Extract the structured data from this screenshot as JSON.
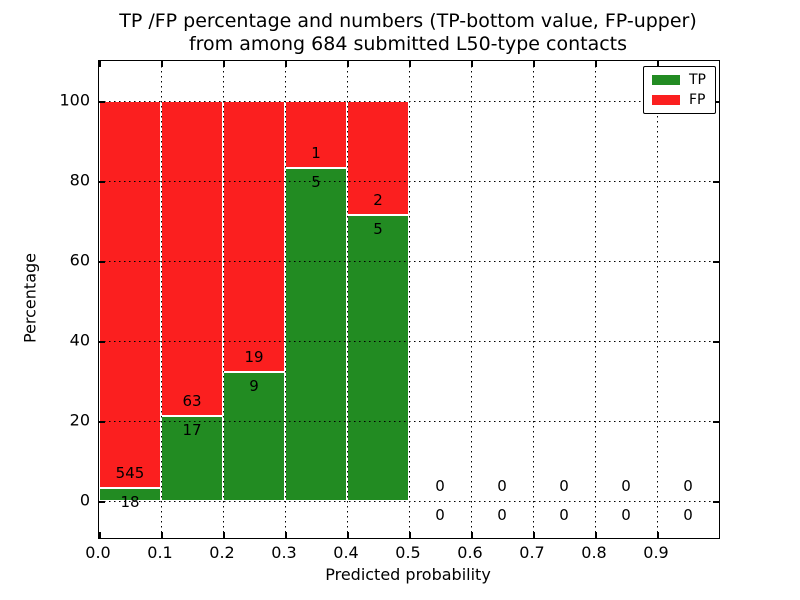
{
  "title": {
    "line1": "TP /FP percentage and numbers (TP-bottom value, FP-upper)",
    "line2": "from among 684 submitted L50-type contacts"
  },
  "axes": {
    "xlabel": "Predicted probability",
    "ylabel": "Percentage",
    "x_tick_labels": [
      "0.0",
      "0.1",
      "0.2",
      "0.3",
      "0.4",
      "0.5",
      "0.6",
      "0.7",
      "0.8",
      "0.9"
    ],
    "y_tick_labels": [
      "0",
      "20",
      "40",
      "60",
      "80",
      "100"
    ],
    "xlim": [
      0.0,
      1.0
    ],
    "ylim": [
      -9.25,
      110
    ],
    "grid": "dotted"
  },
  "legend": {
    "position": "upper right",
    "items": [
      {
        "label": "TP",
        "color": "#228B22"
      },
      {
        "label": "FP",
        "color": "#FB1F1F"
      }
    ]
  },
  "colors": {
    "tp": "#228B22",
    "fp": "#FB1F1F",
    "grid": "#000000",
    "background": "#ffffff"
  },
  "chart_data": {
    "type": "bar",
    "stacked": true,
    "total_contacts": 684,
    "x_bin_width": 0.1,
    "bins": [
      {
        "range": [
          0.0,
          0.1
        ],
        "tp_count": 18,
        "fp_count": 545,
        "tp_pct": 3.2,
        "fp_pct": 96.8
      },
      {
        "range": [
          0.1,
          0.2
        ],
        "tp_count": 17,
        "fp_count": 63,
        "tp_pct": 21.25,
        "fp_pct": 78.75
      },
      {
        "range": [
          0.2,
          0.3
        ],
        "tp_count": 9,
        "fp_count": 19,
        "tp_pct": 32.14,
        "fp_pct": 67.86
      },
      {
        "range": [
          0.3,
          0.4
        ],
        "tp_count": 5,
        "fp_count": 1,
        "tp_pct": 83.33,
        "fp_pct": 16.67
      },
      {
        "range": [
          0.4,
          0.5
        ],
        "tp_count": 5,
        "fp_count": 2,
        "tp_pct": 71.43,
        "fp_pct": 28.57
      },
      {
        "range": [
          0.5,
          0.6
        ],
        "tp_count": 0,
        "fp_count": 0,
        "tp_pct": 0,
        "fp_pct": 0
      },
      {
        "range": [
          0.6,
          0.7
        ],
        "tp_count": 0,
        "fp_count": 0,
        "tp_pct": 0,
        "fp_pct": 0
      },
      {
        "range": [
          0.7,
          0.8
        ],
        "tp_count": 0,
        "fp_count": 0,
        "tp_pct": 0,
        "fp_pct": 0
      },
      {
        "range": [
          0.8,
          0.9
        ],
        "tp_count": 0,
        "fp_count": 0,
        "tp_pct": 0,
        "fp_pct": 0
      },
      {
        "range": [
          0.9,
          1.0
        ],
        "tp_count": 0,
        "fp_count": 0,
        "tp_pct": 0,
        "fp_pct": 0
      }
    ]
  }
}
